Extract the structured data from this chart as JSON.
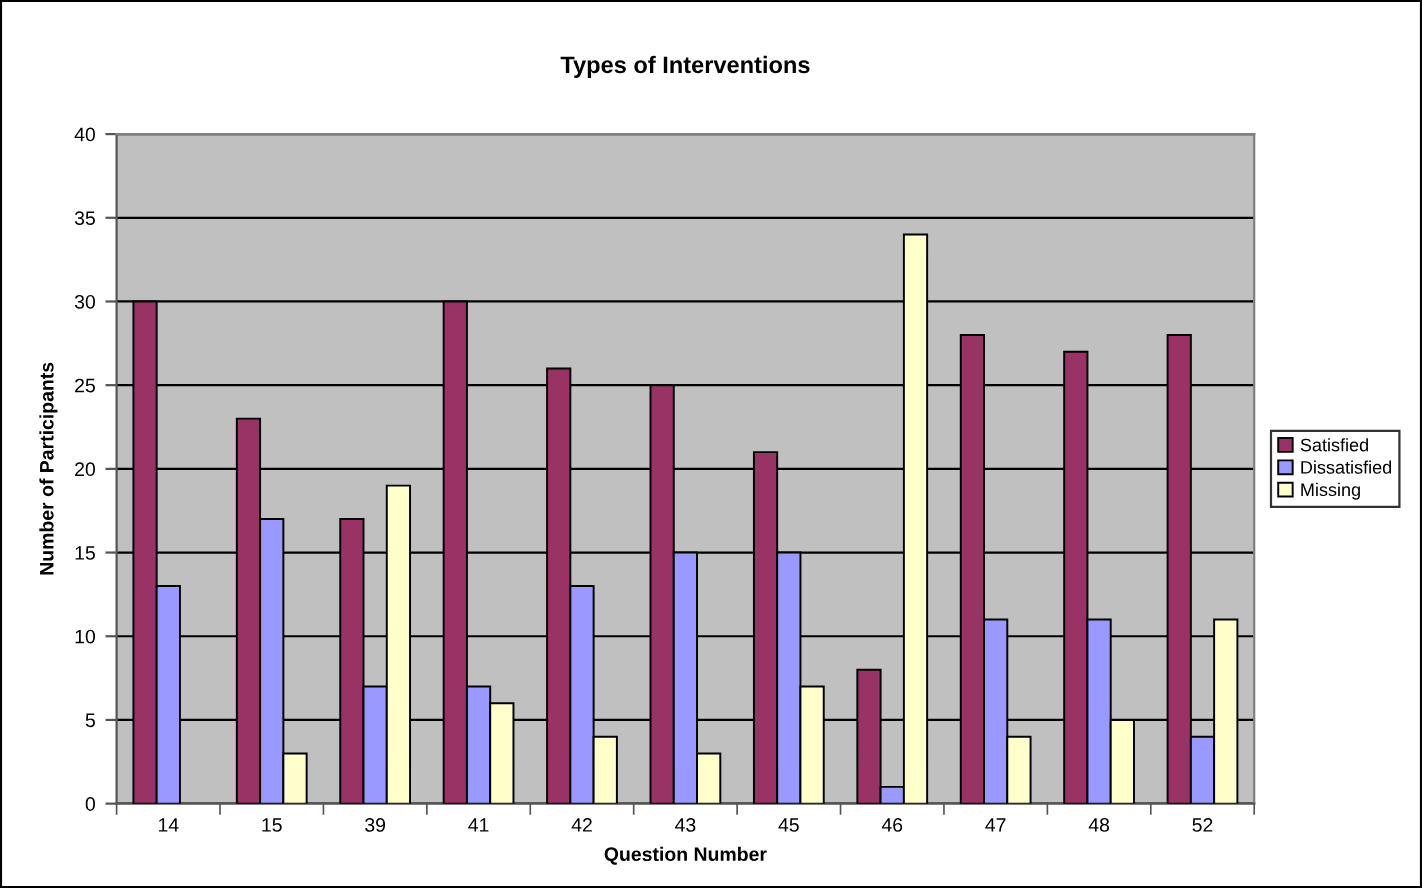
{
  "chart_data": {
    "type": "bar",
    "title": "Types of Interventions",
    "xlabel": "Question Number",
    "ylabel": "Number of Participants",
    "categories": [
      "14",
      "15",
      "39",
      "41",
      "42",
      "43",
      "45",
      "46",
      "47",
      "48",
      "52"
    ],
    "series": [
      {
        "name": "Satisfied",
        "color": "#993366",
        "values": [
          30,
          23,
          17,
          30,
          26,
          25,
          21,
          8,
          28,
          27,
          28
        ]
      },
      {
        "name": "Dissatisfied",
        "color": "#9999ff",
        "values": [
          13,
          17,
          7,
          7,
          13,
          15,
          15,
          1,
          11,
          11,
          4
        ]
      },
      {
        "name": "Missing",
        "color": "#ffffcc",
        "values": [
          null,
          3,
          19,
          6,
          4,
          3,
          7,
          34,
          4,
          5,
          11
        ]
      }
    ],
    "ylim": [
      0,
      40
    ],
    "yticks": [
      0,
      5,
      10,
      15,
      20,
      25,
      30,
      35,
      40
    ],
    "grid": "y",
    "legend": "right"
  }
}
